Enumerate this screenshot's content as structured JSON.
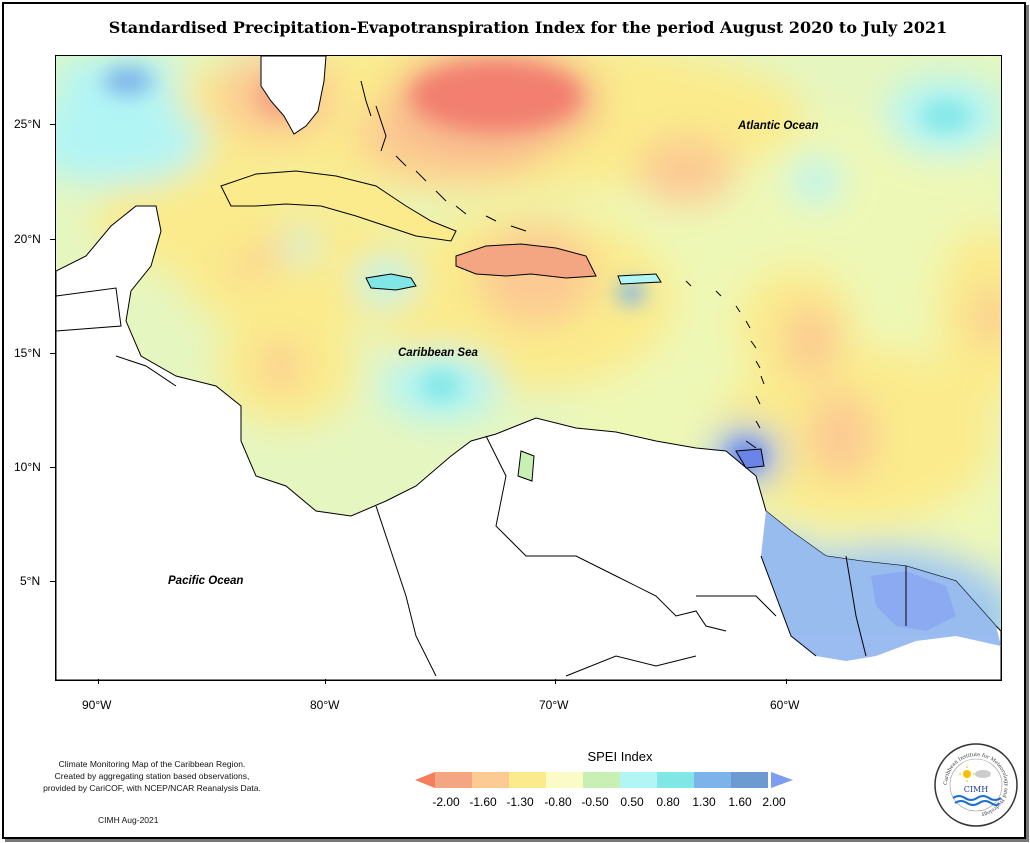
{
  "title": "Standardised Precipitation-Evapotranspiration Index for the period August 2020 to July 2021",
  "y_axis_labels": [
    "25°N",
    "20°N",
    "15°N",
    "10°N",
    "5°N"
  ],
  "x_axis_labels": [
    "90°W",
    "80°W",
    "70°W",
    "60°W"
  ],
  "ocean_labels": {
    "atlantic": "Atlantic Ocean",
    "caribbean": "Caribbean Sea",
    "pacific": "Pacific Ocean"
  },
  "credits": {
    "line1": "Climate Monitoring Map of the Caribbean Region.",
    "line2": "Created by aggregating station based observations,",
    "line3": "provided by CariCOF, with NCEP/NCAR Reanalysis Data.",
    "date": "CIMH Aug-2021"
  },
  "legend": {
    "title": "SPEI Index",
    "labels": [
      "-2.00",
      "-1.60",
      "-1.30",
      "-0.80",
      "-0.50",
      "0.50",
      "0.80",
      "1.30",
      "1.60",
      "2.00"
    ],
    "colors": [
      "#f47f5a",
      "#f4a582",
      "#fcca93",
      "#fbeb8c",
      "#fbfbc8",
      "#c8f0b4",
      "#b2f5f5",
      "#80e6e6",
      "#7cb4ea",
      "#6b9bd1",
      "#7d9ef0"
    ]
  },
  "logo": {
    "text": "CIMH",
    "ring_text": "Caribbean Institute for Meteorology and Hydrology"
  }
}
